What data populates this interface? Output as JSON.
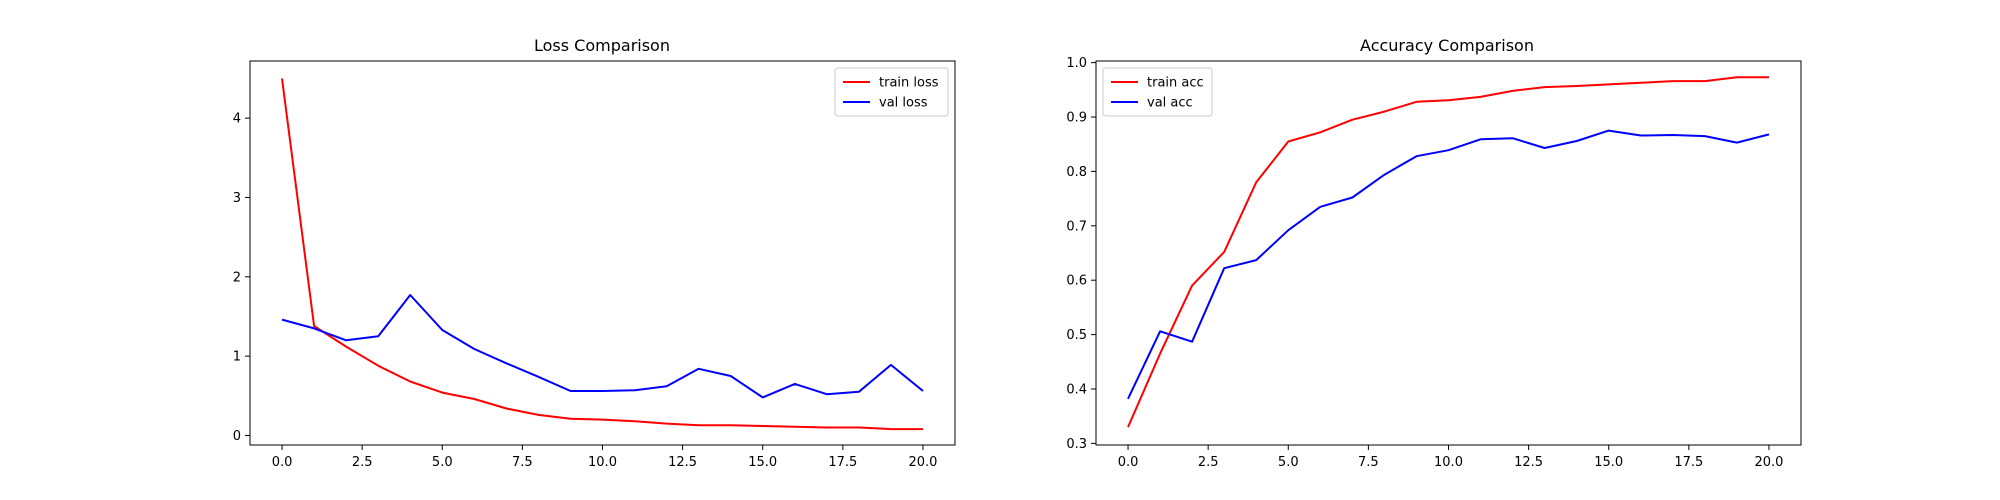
{
  "chart_data": [
    {
      "type": "line",
      "title": "Loss Comparison",
      "xlim": [
        -1,
        21
      ],
      "ylim": [
        -0.12,
        4.72
      ],
      "xticks": [
        0.0,
        2.5,
        5.0,
        7.5,
        10.0,
        12.5,
        15.0,
        17.5,
        20.0
      ],
      "xtick_labels": [
        "0.0",
        "2.5",
        "5.0",
        "7.5",
        "10.0",
        "12.5",
        "15.0",
        "17.5",
        "20.0"
      ],
      "yticks": [
        0,
        1,
        2,
        3,
        4
      ],
      "ytick_labels": [
        "0",
        "1",
        "2",
        "3",
        "4"
      ],
      "legend_position": "top-right",
      "grid": false,
      "x": [
        0,
        1,
        2,
        3,
        4,
        5,
        6,
        7,
        8,
        9,
        10,
        11,
        12,
        13,
        14,
        15,
        16,
        17,
        18,
        19,
        20
      ],
      "series": [
        {
          "name": "train loss",
          "color": "#ff0000",
          "values": [
            4.5,
            1.38,
            1.12,
            0.88,
            0.68,
            0.54,
            0.46,
            0.34,
            0.26,
            0.21,
            0.2,
            0.18,
            0.15,
            0.13,
            0.13,
            0.12,
            0.11,
            0.1,
            0.1,
            0.08,
            0.08
          ]
        },
        {
          "name": "val loss",
          "color": "#0000ff",
          "values": [
            1.46,
            1.35,
            1.2,
            1.25,
            1.77,
            1.33,
            1.09,
            0.91,
            0.74,
            0.56,
            0.56,
            0.57,
            0.62,
            0.84,
            0.75,
            0.48,
            0.65,
            0.52,
            0.55,
            0.89,
            0.56
          ]
        }
      ]
    },
    {
      "type": "line",
      "title": "Accuracy Comparison",
      "xlim": [
        -1,
        21
      ],
      "ylim": [
        0.297,
        1.003
      ],
      "xticks": [
        0.0,
        2.5,
        5.0,
        7.5,
        10.0,
        12.5,
        15.0,
        17.5,
        20.0
      ],
      "xtick_labels": [
        "0.0",
        "2.5",
        "5.0",
        "7.5",
        "10.0",
        "12.5",
        "15.0",
        "17.5",
        "20.0"
      ],
      "yticks": [
        0.3,
        0.4,
        0.5,
        0.6,
        0.7,
        0.8,
        0.9,
        1.0
      ],
      "ytick_labels": [
        "0.3",
        "0.4",
        "0.5",
        "0.6",
        "0.7",
        "0.8",
        "0.9",
        "1.0"
      ],
      "legend_position": "top-left",
      "grid": false,
      "x": [
        0,
        1,
        2,
        3,
        4,
        5,
        6,
        7,
        8,
        9,
        10,
        11,
        12,
        13,
        14,
        15,
        16,
        17,
        18,
        19,
        20
      ],
      "series": [
        {
          "name": "train acc",
          "color": "#ff0000",
          "values": [
            0.33,
            0.465,
            0.59,
            0.652,
            0.78,
            0.855,
            0.872,
            0.895,
            0.91,
            0.928,
            0.931,
            0.937,
            0.948,
            0.955,
            0.957,
            0.96,
            0.963,
            0.966,
            0.966,
            0.973,
            0.973
          ]
        },
        {
          "name": "val acc",
          "color": "#0000ff",
          "values": [
            0.382,
            0.506,
            0.487,
            0.622,
            0.637,
            0.692,
            0.735,
            0.752,
            0.794,
            0.828,
            0.839,
            0.859,
            0.861,
            0.843,
            0.856,
            0.875,
            0.866,
            0.867,
            0.865,
            0.853,
            0.868
          ]
        }
      ]
    }
  ]
}
